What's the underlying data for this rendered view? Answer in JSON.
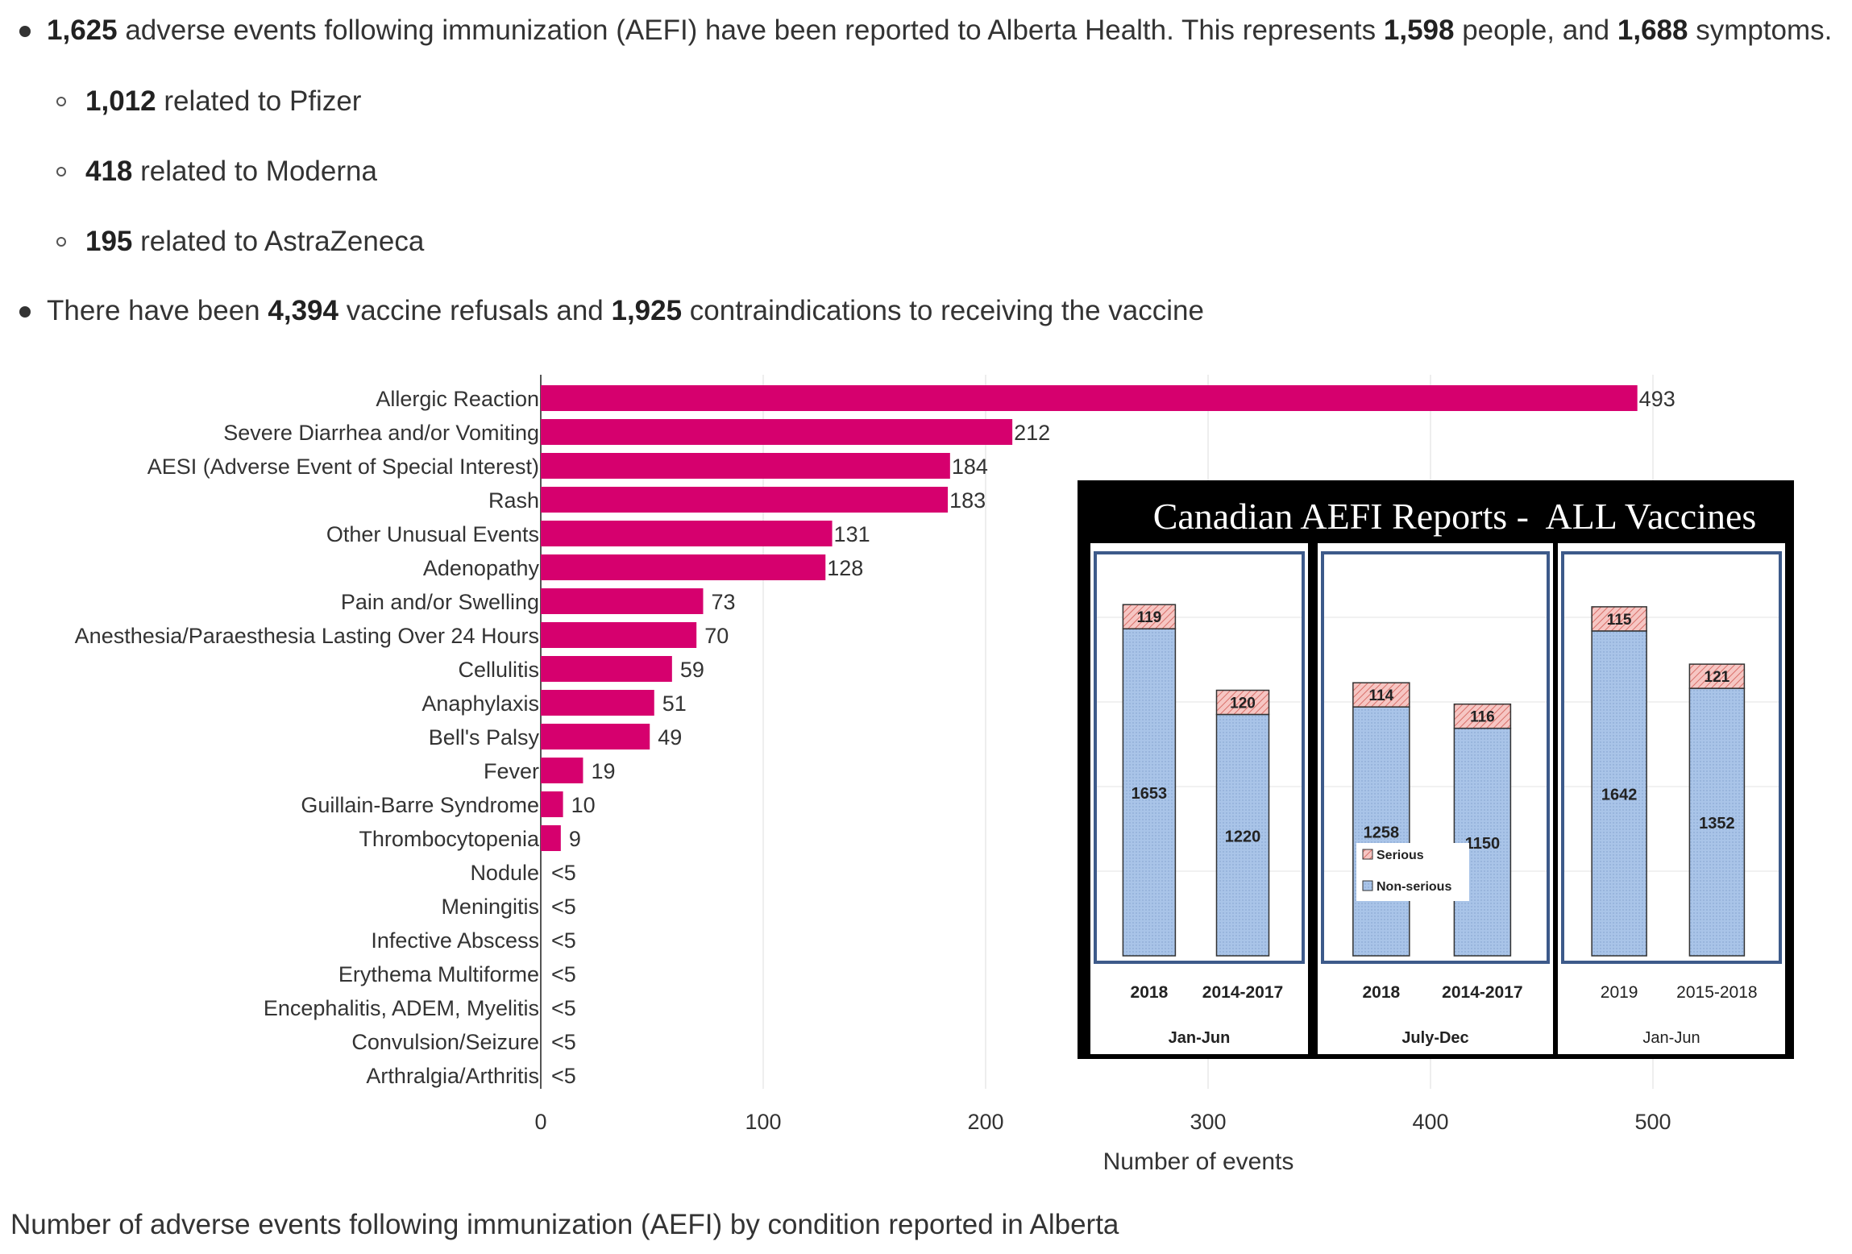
{
  "bullets": {
    "b1": {
      "n1": "1,625",
      "t1": " adverse events following immunization (AEFI) have been reported to Alberta Health. This represents ",
      "n2": "1,598",
      "t2": " people, and ",
      "n3": "1,688",
      "t3": " symptoms."
    },
    "sub": [
      {
        "n": "1,012",
        "t": " related to Pfizer"
      },
      {
        "n": "418",
        "t": " related to Moderna"
      },
      {
        "n": "195",
        "t": " related to AstraZeneca"
      }
    ],
    "b2": {
      "t0": "There have been ",
      "n1": "4,394",
      "t1": " vaccine refusals and ",
      "n2": "1,925",
      "t2": " contraindications to receiving the vaccine"
    }
  },
  "caption": "Number of adverse events following immunization (AEFI) by condition reported in Alberta",
  "colors": {
    "bar": "#d6006e",
    "text": "#333333",
    "grid": "#e8e8e8",
    "serious": "#f4b3b0",
    "nonserious": "#a9c4e8",
    "panelBorder": "#3d5a8a"
  },
  "chart_data": [
    {
      "type": "bar",
      "orientation": "horizontal",
      "categories": [
        "Allergic Reaction",
        "Severe Diarrhea and/or Vomiting",
        "AESI (Adverse Event of Special Interest)",
        "Rash",
        "Other Unusual Events",
        "Adenopathy",
        "Pain and/or Swelling",
        "Anesthesia/Paraesthesia Lasting Over 24 Hours",
        "Cellulitis",
        "Anaphylaxis",
        "Bell's Palsy",
        "Fever",
        "Guillain-Barre Syndrome",
        "Thrombocytopenia",
        "Nodule",
        "Meningitis",
        "Infective Abscess",
        "Erythema Multiforme",
        "Encephalitis, ADEM, Myelitis",
        "Convulsion/Seizure",
        "Arthralgia/Arthritis"
      ],
      "values": [
        493,
        212,
        184,
        183,
        131,
        128,
        73,
        70,
        59,
        51,
        49,
        19,
        10,
        9,
        null,
        null,
        null,
        null,
        null,
        null,
        null
      ],
      "labels": [
        "493",
        "212",
        "184",
        "183",
        "131",
        "128",
        "73",
        "70",
        "59",
        "51",
        "49",
        "19",
        "10",
        "9",
        "<5",
        "<5",
        "<5",
        "<5",
        "<5",
        "<5",
        "<5"
      ],
      "xlabel": "Number of events",
      "xlim": [
        0,
        560
      ],
      "xticks": [
        0,
        100,
        200,
        300,
        400,
        500
      ],
      "grid": true
    },
    {
      "type": "bar",
      "stacked": true,
      "title": "Canadian AEFI Reports -  ALL Vaccines",
      "legend": [
        "Serious",
        "Non-serious"
      ],
      "panels": [
        {
          "period": "Jan-Jun",
          "groups": [
            {
              "label": "2018",
              "serious": 119,
              "nonserious": 1653
            },
            {
              "label": "2014-2017",
              "serious": 120,
              "nonserious": 1220
            }
          ]
        },
        {
          "period": "July-Dec",
          "groups": [
            {
              "label": "2018",
              "serious": 114,
              "nonserious": 1258
            },
            {
              "label": "2014-2017",
              "serious": 116,
              "nonserious": 1150
            }
          ]
        },
        {
          "period": "Jan-Jun",
          "groups": [
            {
              "label": "2019",
              "serious": 115,
              "nonserious": 1642
            },
            {
              "label": "2015-2018",
              "serious": 121,
              "nonserious": 1352
            }
          ]
        }
      ]
    }
  ]
}
